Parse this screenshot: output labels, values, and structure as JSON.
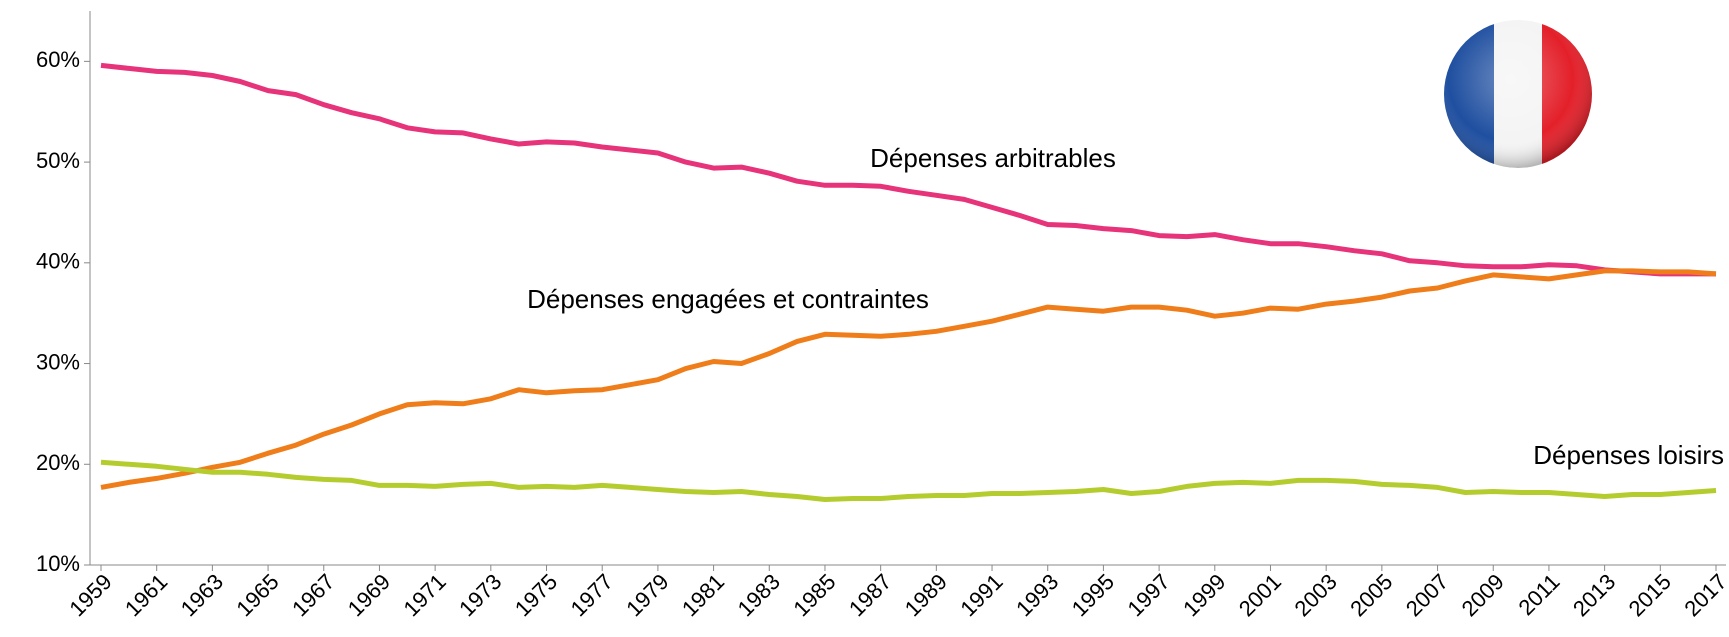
{
  "chart_data": {
    "type": "line",
    "categories": [
      1959,
      null,
      1961,
      null,
      1963,
      null,
      1965,
      null,
      1967,
      null,
      1969,
      null,
      1971,
      null,
      1973,
      null,
      1975,
      null,
      1977,
      null,
      1979,
      null,
      1981,
      null,
      1983,
      null,
      1985,
      null,
      1987,
      null,
      1989,
      null,
      1991,
      null,
      1993,
      null,
      1995,
      null,
      1997,
      null,
      1999,
      null,
      2001,
      null,
      2003,
      null,
      2005,
      null,
      2007,
      null,
      2009,
      null,
      2011,
      null,
      2013,
      null,
      2015,
      null,
      2017
    ],
    "series": [
      {
        "name": "Dépenses arbitrables",
        "color": "#e6337a",
        "values": [
          59.6,
          59.3,
          59.0,
          58.9,
          58.6,
          58.0,
          57.1,
          56.7,
          55.7,
          54.9,
          54.3,
          53.4,
          53.0,
          52.9,
          52.3,
          51.8,
          52.0,
          51.9,
          51.5,
          51.2,
          50.9,
          50.0,
          49.4,
          49.5,
          48.9,
          48.1,
          47.7,
          47.7,
          47.6,
          47.1,
          46.7,
          46.3,
          45.5,
          44.7,
          43.8,
          43.7,
          43.4,
          43.2,
          42.7,
          42.6,
          42.8,
          42.3,
          41.9,
          41.9,
          41.6,
          41.2,
          40.9,
          40.2,
          40.0,
          39.7,
          39.6,
          39.6,
          39.8,
          39.7,
          39.3,
          39.1,
          38.9,
          38.9,
          38.9
        ]
      },
      {
        "name": "Dépenses engagées et contraintes",
        "color": "#ee7d1a",
        "values": [
          17.7,
          18.2,
          18.6,
          19.1,
          19.7,
          20.2,
          21.1,
          21.9,
          23.0,
          23.9,
          25.0,
          25.9,
          26.1,
          26.0,
          26.5,
          27.4,
          27.1,
          27.3,
          27.4,
          27.9,
          28.4,
          29.5,
          30.2,
          30.0,
          31.0,
          32.2,
          32.9,
          32.8,
          32.7,
          32.9,
          33.2,
          33.7,
          34.2,
          34.9,
          35.6,
          35.4,
          35.2,
          35.6,
          35.6,
          35.3,
          34.7,
          35.0,
          35.5,
          35.4,
          35.9,
          36.2,
          36.6,
          37.2,
          37.5,
          38.2,
          38.8,
          38.6,
          38.4,
          38.8,
          39.2,
          39.2,
          39.1,
          39.1,
          38.9
        ]
      },
      {
        "name": "Dépenses loisirs",
        "color": "#b5cc2e",
        "values": [
          20.2,
          20.0,
          19.8,
          19.5,
          19.2,
          19.2,
          19.0,
          18.7,
          18.5,
          18.4,
          17.9,
          17.9,
          17.8,
          18.0,
          18.1,
          17.7,
          17.8,
          17.7,
          17.9,
          17.7,
          17.5,
          17.3,
          17.2,
          17.3,
          17.0,
          16.8,
          16.5,
          16.6,
          16.6,
          16.8,
          16.9,
          16.9,
          17.1,
          17.1,
          17.2,
          17.3,
          17.5,
          17.1,
          17.3,
          17.8,
          18.1,
          18.2,
          18.1,
          18.4,
          18.4,
          18.3,
          18.0,
          17.9,
          17.7,
          17.2,
          17.3,
          17.2,
          17.2,
          17.0,
          16.8,
          17.0,
          17.0,
          17.2,
          17.4
        ]
      }
    ],
    "ylim": [
      10,
      65
    ],
    "yticks": [
      {
        "value": 10,
        "label": "10%"
      },
      {
        "value": 20,
        "label": "20%"
      },
      {
        "value": 30,
        "label": "30%"
      },
      {
        "value": 40,
        "label": "40%"
      },
      {
        "value": 50,
        "label": "50%"
      },
      {
        "value": 60,
        "label": "60%"
      }
    ]
  }
}
